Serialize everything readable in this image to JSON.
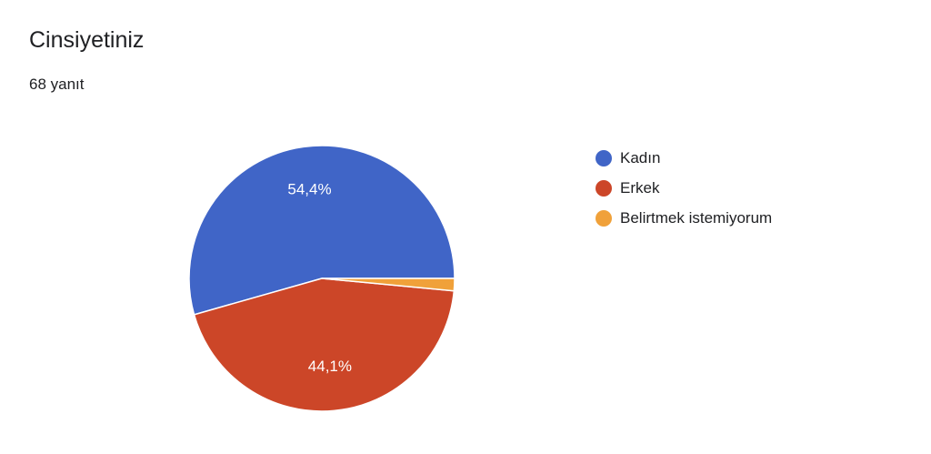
{
  "header": {
    "title": "Cinsiyetiniz",
    "response_count": "68 yanıt"
  },
  "chart_data": {
    "type": "pie",
    "title": "Cinsiyetiniz",
    "series": [
      {
        "name": "Kadın",
        "value": 54.4,
        "label": "54,4%",
        "color": "#4065c7"
      },
      {
        "name": "Erkek",
        "value": 44.1,
        "label": "44,1%",
        "color": "#cc4628"
      },
      {
        "name": "Belirtmek istemiyorum",
        "value": 1.5,
        "label": "",
        "color": "#f0a13a"
      }
    ],
    "start_direction": "3 o'clock",
    "direction": "counterclockwise",
    "legend_position": "right"
  }
}
